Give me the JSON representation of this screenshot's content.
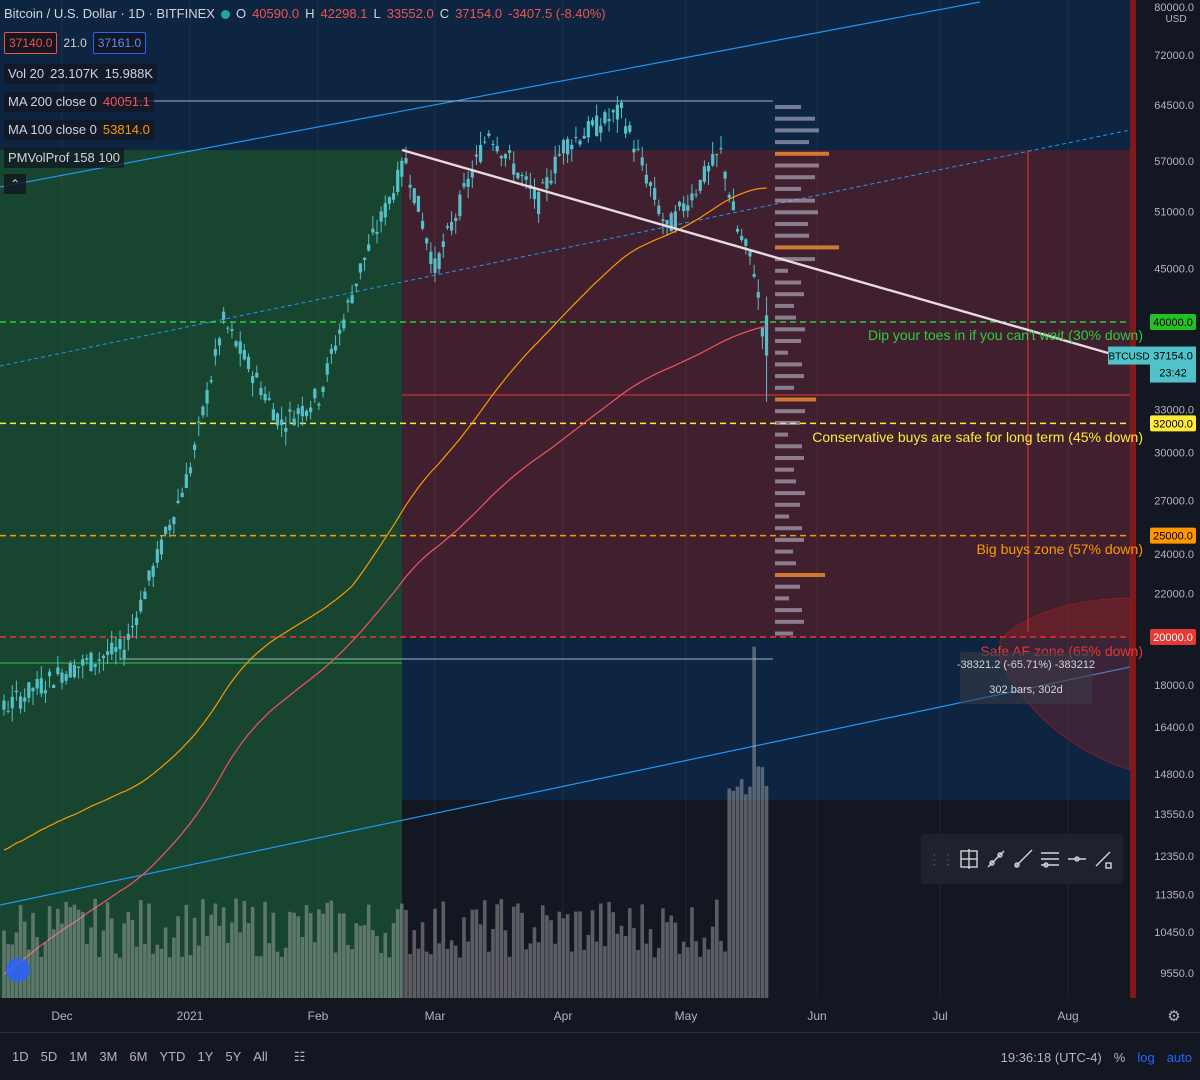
{
  "header": {
    "symbol_title": "Bitcoin / U.S. Dollar · 1D · BITFINEX",
    "ohlc": {
      "o_label": "O",
      "o": "40590.0",
      "h_label": "H",
      "h": "42298.1",
      "l_label": "L",
      "l": "33552.0",
      "c_label": "C",
      "c": "37154.0",
      "change": "-3407.5 (-8.40%)"
    },
    "bid": "37140.0",
    "spread": "21.0",
    "ask": "37161.0"
  },
  "indicators": [
    {
      "label": "Vol 20",
      "value1": "23.107K",
      "value2": "15.988K"
    },
    {
      "label": "MA 200 close 0",
      "value": "40051.1",
      "color": "#f7525f"
    },
    {
      "label": "MA 100 close 0",
      "value": "53814.0",
      "color": "#ff9800"
    },
    {
      "label": "PMVolProf 158 100"
    }
  ],
  "price_axis": {
    "currency": "USD",
    "ticks": [
      "80000.0",
      "72000.0",
      "64500.0",
      "57000.0",
      "51000.0",
      "45000.0",
      "33000.0",
      "30000.0",
      "27000.0",
      "24000.0",
      "22000.0",
      "18000.0",
      "16400.0",
      "14800.0",
      "13550.0",
      "12350.0",
      "11350.0",
      "10450.0",
      "9550.0"
    ],
    "tags": [
      {
        "value": "40000.0",
        "color": "#26c026",
        "text_color": "#000"
      },
      {
        "value": "32000.0",
        "color": "#ffeb3b",
        "text_color": "#000"
      },
      {
        "value": "25000.0",
        "color": "#ff9800",
        "text_color": "#000"
      },
      {
        "value": "20000.0",
        "color": "#e53935",
        "text_color": "#fff"
      }
    ],
    "last_price": {
      "symbol": "BTCUSD",
      "price": "37154.0",
      "countdown": "23:42"
    }
  },
  "time_axis": [
    "Dec",
    "2021",
    "Feb",
    "Mar",
    "Apr",
    "May",
    "Jun",
    "Jul",
    "Aug"
  ],
  "annotations": {
    "z40": "Dip your toes in if you can't wait (30% down)",
    "z32": "Conservative buys are safe for long term (45% down)",
    "z25": "Big buys zone (57% down)",
    "z20": "Safe AF zone (65% down)",
    "measure_change": "-38321.2 (-65.71%) -383212",
    "measure_bars": "302 bars, 302d"
  },
  "colors": {
    "up": "#26a69a",
    "up_fill": "#4fc3c9",
    "ma200": "#f7525f",
    "ma100": "#ff9800",
    "trend": "#e8d9e3",
    "channel": "#2196f3"
  },
  "chart_data": {
    "type": "candlestick",
    "symbol": "BTCUSD",
    "exchange": "BITFINEX",
    "timeframe": "1D",
    "scale": "log",
    "ylim": [
      9000,
      80000
    ],
    "x_range": [
      "Nov",
      "Aug"
    ],
    "key_levels": [
      {
        "price": 40000,
        "label": "Dip your toes in if you can't wait (30% down)"
      },
      {
        "price": 32000,
        "label": "Conservative buys are safe for long term (45% down)"
      },
      {
        "price": 25000,
        "label": "Big buys zone (57% down)"
      },
      {
        "price": 20000,
        "label": "Safe AF zone (65% down)"
      }
    ],
    "last": {
      "open": 40590.0,
      "high": 42298.1,
      "low": 33552.0,
      "close": 37154.0
    },
    "ma200_last": 40051.1,
    "ma100_last": 53814.0,
    "approx_price_path": [
      [
        "Dec",
        18500
      ],
      [
        "Dec 15",
        19500
      ],
      [
        "2021",
        29000
      ],
      [
        "Jan 8",
        40000
      ],
      [
        "Jan 22",
        32000
      ],
      [
        "Feb",
        34000
      ],
      [
        "Feb 10",
        45000
      ],
      [
        "Feb 21",
        57000
      ],
      [
        "Feb 28",
        45000
      ],
      [
        "Mar 13",
        61000
      ],
      [
        "Mar 25",
        52000
      ],
      [
        "Apr",
        59000
      ],
      [
        "Apr 14",
        63500
      ],
      [
        "Apr 25",
        49000
      ],
      [
        "May 8",
        58000
      ],
      [
        "May 12",
        49000
      ],
      [
        "May 16",
        45000
      ],
      [
        "May 19",
        37154
      ]
    ]
  },
  "toolbar": {
    "timeframes": [
      "1D",
      "5D",
      "1M",
      "3M",
      "6M",
      "YTD",
      "1Y",
      "5Y",
      "All"
    ],
    "clock": "19:36:18 (UTC-4)",
    "percent": "%",
    "log": "log",
    "auto": "auto"
  }
}
